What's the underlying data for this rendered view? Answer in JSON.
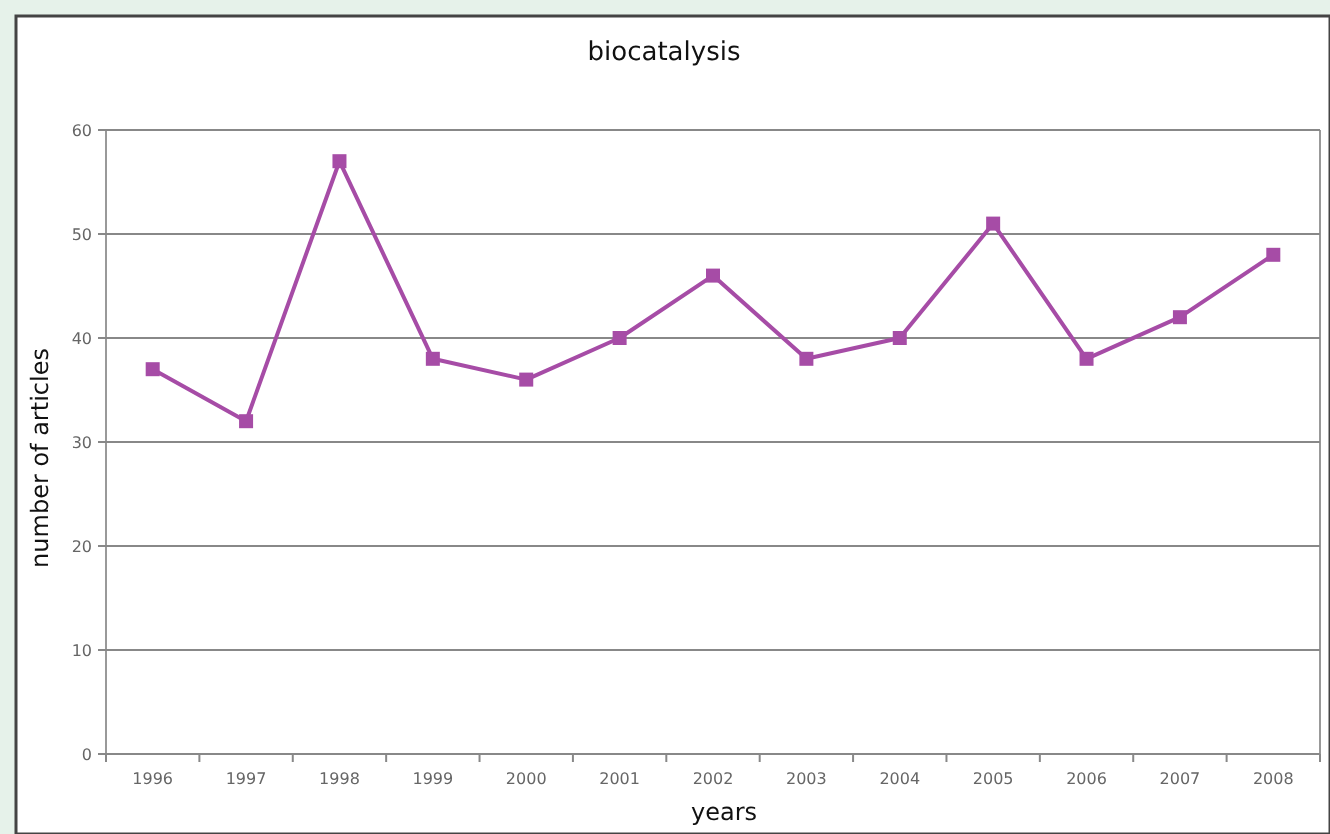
{
  "chart_data": {
    "type": "line",
    "title": "biocatalysis",
    "xlabel": "years",
    "ylabel": "number of articles",
    "categories": [
      "1996",
      "1997",
      "1998",
      "1999",
      "2000",
      "2001",
      "2002",
      "2003",
      "2004",
      "2005",
      "2006",
      "2007",
      "2008"
    ],
    "series": [
      {
        "color": "#a64ca6",
        "values": [
          37,
          32,
          57,
          38,
          36,
          40,
          46,
          38,
          40,
          51,
          38,
          42,
          48
        ]
      }
    ],
    "ylim": [
      0,
      60
    ],
    "yticks": [
      0,
      10,
      20,
      30,
      40,
      50,
      60
    ],
    "grid": "y",
    "marker": "square",
    "line_style": "solid"
  }
}
